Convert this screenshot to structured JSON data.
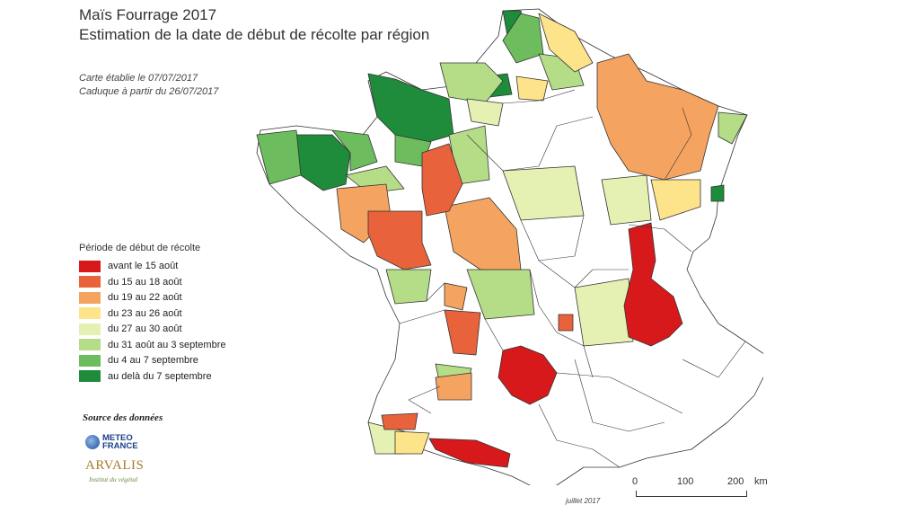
{
  "title": {
    "line1": "Maïs Fourrage 2017",
    "line2": "Estimation de la date de début de récolte par région"
  },
  "meta": {
    "line1": "Carte établie le 07/07/2017",
    "line2": "Caduque à partir du 26/07/2017"
  },
  "legend": {
    "title": "Période de début de récolte",
    "items": [
      {
        "label": "avant le 15 août",
        "color": "#d7191c"
      },
      {
        "label": "du 15 au 18 août",
        "color": "#e8623b"
      },
      {
        "label": "du 19 au 22 août",
        "color": "#f4a460"
      },
      {
        "label": "du 23 au 26 août",
        "color": "#fde38a"
      },
      {
        "label": "du 27 au 30 août",
        "color": "#e4f1b2"
      },
      {
        "label": "du 31 août au 3 septembre",
        "color": "#b5dc86"
      },
      {
        "label": "du 4 au 7 septembre",
        "color": "#6dbd5e"
      },
      {
        "label": "au delà du 7 septembre",
        "color": "#1e8c3a"
      }
    ]
  },
  "source": {
    "title": "Source des données",
    "meteo_line1": "METEO",
    "meteo_line2": "FRANCE",
    "arvalis_name": "ARVALIS",
    "arvalis_sub": "Institut du végétal"
  },
  "scale": {
    "label_0": "0",
    "label_100": "100",
    "label_200": "200",
    "unit": "km"
  },
  "footer_date": "juillet 2017"
}
